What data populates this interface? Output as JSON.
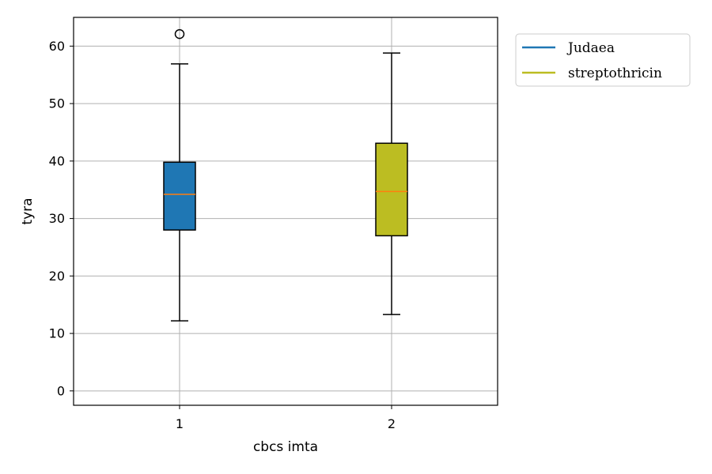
{
  "chart_data": {
    "type": "boxplot",
    "xlabel": "cbcs imta",
    "ylabel": "tyra",
    "categories": [
      "1",
      "2"
    ],
    "ylim": [
      -2.5,
      65
    ],
    "yticks": [
      "0",
      "10",
      "20",
      "30",
      "40",
      "50",
      "60"
    ],
    "grid": true,
    "legend_position": "outside-top-right",
    "median_color": "#ff7f0e",
    "series": [
      {
        "name": "Judaea",
        "color": "#1f77b4",
        "whisker_low": 12.2,
        "q1": 28.0,
        "median": 34.2,
        "q3": 39.8,
        "whisker_high": 56.9,
        "outliers": [
          62.1
        ]
      },
      {
        "name": "streptothricin",
        "color": "#bcbd22",
        "whisker_low": 13.3,
        "q1": 27.0,
        "median": 34.7,
        "q3": 43.1,
        "whisker_high": 58.8,
        "outliers": []
      }
    ]
  }
}
